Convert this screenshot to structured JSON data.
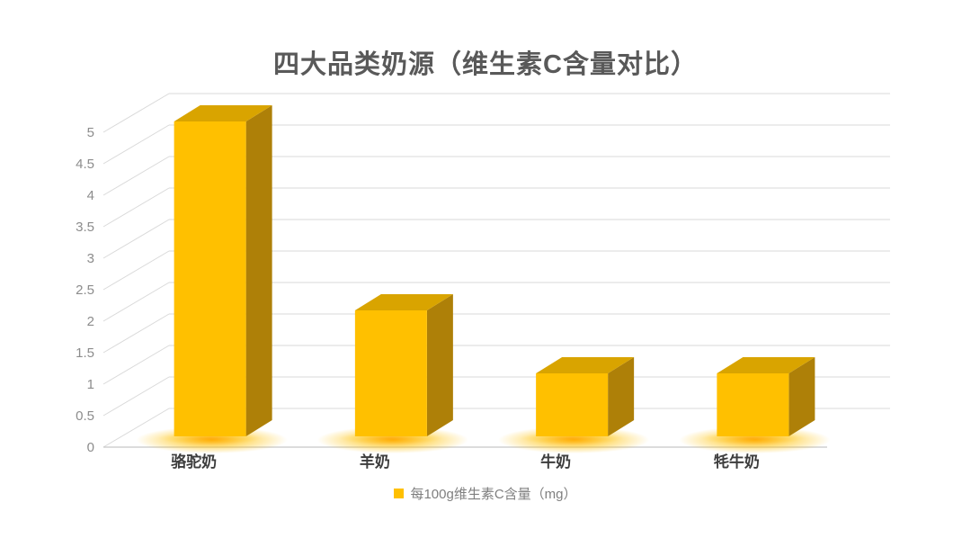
{
  "chart_data": {
    "type": "bar",
    "projection": "3d-oblique",
    "title": "四大品类奶源（维生素C含量对比）",
    "categories": [
      "骆驼奶",
      "羊奶",
      "牛奶",
      "牦牛奶"
    ],
    "series": [
      {
        "name": "每100g维生素C含量（mg）",
        "values": [
          5,
          2,
          1,
          1
        ]
      }
    ],
    "xlabel": "",
    "ylabel": "",
    "ylim": [
      0,
      5
    ],
    "ytick_step": 0.5,
    "yticks": [
      0,
      0.5,
      1,
      1.5,
      2,
      2.5,
      3,
      3.5,
      4,
      4.5,
      5
    ],
    "grid": true,
    "legend": {
      "position": "bottom",
      "label": "每100g维生素C含量（mg）",
      "marker_color": "#FFC000"
    },
    "colors": {
      "bar_front": "#FFC000",
      "bar_top": "#D9A400",
      "bar_side": "#AE8008",
      "glow": "#FFA400",
      "gridline": "#D9D9D9",
      "axis_line": "#C6C6C6",
      "tick_label": "#8C8C8C",
      "category_label": "#3D3D3D",
      "title": "#595959",
      "legend_text": "#7F7F7F",
      "background": "#FFFFFF"
    }
  }
}
